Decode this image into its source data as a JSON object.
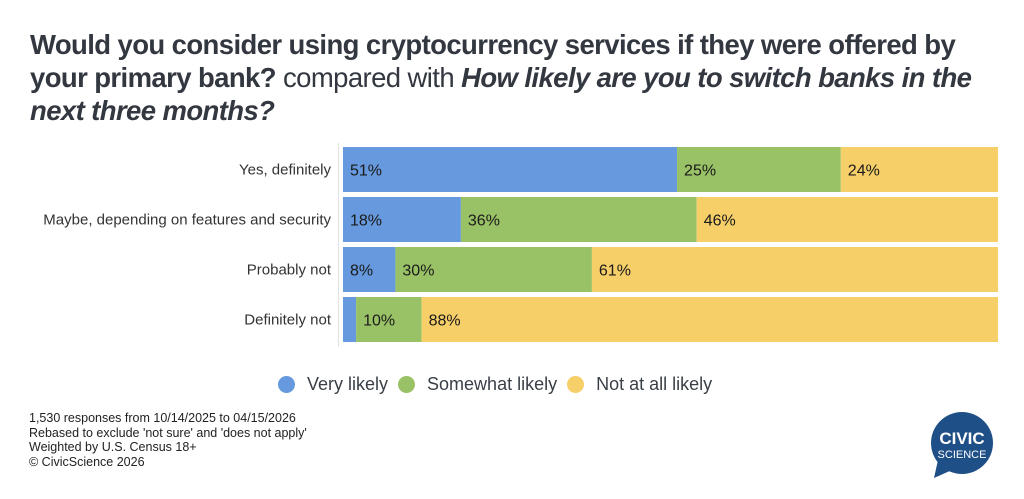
{
  "title": {
    "part1": "Would you consider using cryptocurrency services if they were offered by your primary bank?",
    "part2": " compared with ",
    "part3": "How likely are you to switch banks in the next three months?"
  },
  "chart_data": {
    "type": "bar",
    "orientation": "horizontal",
    "stacked": true,
    "normalized": true,
    "categories": [
      "Yes, definitely",
      "Maybe, depending on features and security",
      "Probably not",
      "Definitely not"
    ],
    "series": [
      {
        "name": "Very likely",
        "color": "#6699dd",
        "values": [
          51,
          18,
          8,
          2
        ],
        "labels": [
          "51%",
          "18%",
          "8%",
          ""
        ]
      },
      {
        "name": "Somewhat likely",
        "color": "#99c166",
        "values": [
          25,
          36,
          30,
          10
        ],
        "labels": [
          "25%",
          "36%",
          "30%",
          "10%"
        ]
      },
      {
        "name": "Not at all likely",
        "color": "#f7cf69",
        "values": [
          24,
          46,
          61,
          88
        ],
        "labels": [
          "24%",
          "46%",
          "61%",
          "88%"
        ]
      }
    ],
    "xlim": [
      0,
      100
    ],
    "grid": false,
    "legend_position": "bottom"
  },
  "legend": [
    {
      "label": "Very likely",
      "color": "#6699dd"
    },
    {
      "label": "Somewhat likely",
      "color": "#99c166"
    },
    {
      "label": "Not at all likely",
      "color": "#f7cf69"
    }
  ],
  "footnote": [
    "1,530 responses from 10/14/2025 to 04/15/2026",
    "Rebased to exclude 'not sure' and 'does not apply'",
    "Weighted by U.S. Census 18+",
    "© CivicScience 2026"
  ],
  "logo": {
    "line1": "CIVIC",
    "line2": "SCIENCE",
    "color": "#1f4f87"
  }
}
